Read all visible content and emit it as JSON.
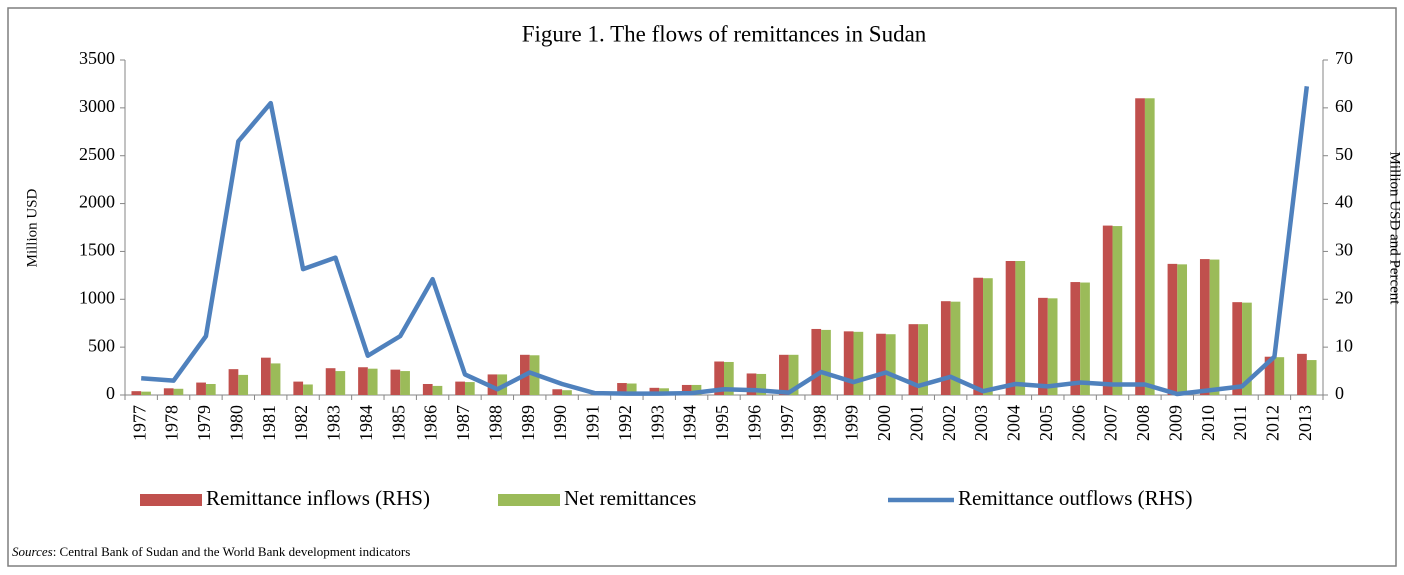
{
  "chart_data": {
    "type": "bar_line",
    "title": "Figure 1. The flows of remittances in Sudan",
    "y_label": "Million USD",
    "y2_label": "Million USD and Percent",
    "source_label": "Sources",
    "source_text": ": Central Bank of Sudan and the World Bank development indicators",
    "categories": [
      "1977",
      "1978",
      "1979",
      "1980",
      "1981",
      "1982",
      "1983",
      "1984",
      "1985",
      "1986",
      "1987",
      "1988",
      "1989",
      "1990",
      "1991",
      "1992",
      "1993",
      "1994",
      "1995",
      "1996",
      "1997",
      "1998",
      "1999",
      "2000",
      "2001",
      "2002",
      "2003",
      "2004",
      "2005",
      "2006",
      "2007",
      "2008",
      "2009",
      "2010",
      "2011",
      "2012",
      "2013"
    ],
    "series": [
      {
        "name": "Remittance inflows (RHS)",
        "color": "#c0504d",
        "type": "bar",
        "values": [
          40,
          70,
          130,
          270,
          390,
          140,
          280,
          290,
          265,
          115,
          140,
          215,
          420,
          60,
          0,
          125,
          75,
          105,
          350,
          225,
          420,
          690,
          665,
          640,
          740,
          980,
          1225,
          1400,
          1015,
          1180,
          1770,
          3100,
          1370,
          1420,
          970,
          400,
          430
        ]
      },
      {
        "name": "Net remittances",
        "color": "#9bbb59",
        "type": "bar",
        "values": [
          35,
          65,
          115,
          210,
          330,
          110,
          250,
          275,
          250,
          95,
          135,
          215,
          415,
          50,
          0,
          120,
          70,
          105,
          345,
          220,
          420,
          680,
          660,
          635,
          740,
          975,
          1220,
          1400,
          1010,
          1175,
          1765,
          3100,
          1365,
          1415,
          965,
          395,
          365
        ]
      },
      {
        "name": "Remittance outflows (RHS)",
        "color": "#4f81bd",
        "type": "line",
        "axis": "y2",
        "values": [
          3.5,
          3,
          12.3,
          53,
          61,
          26.3,
          28.7,
          8.2,
          12.3,
          24.2,
          4.3,
          1.2,
          4.7,
          2.3,
          0.4,
          0.3,
          0.3,
          0.4,
          1.2,
          1,
          0.5,
          4.8,
          2.7,
          4.7,
          1.9,
          3.8,
          0.8,
          2.3,
          1.8,
          2.6,
          2.2,
          2.2,
          0.2,
          1,
          1.8,
          8,
          64.5
        ]
      }
    ],
    "ylim": [
      0,
      3500
    ],
    "yticks": [
      0,
      500,
      1000,
      1500,
      2000,
      2500,
      3000,
      3500
    ],
    "y2lim": [
      0,
      70
    ],
    "y2ticks": [
      0,
      10,
      20,
      30,
      40,
      50,
      60,
      70
    ],
    "grid": false,
    "legend": "bottom"
  }
}
